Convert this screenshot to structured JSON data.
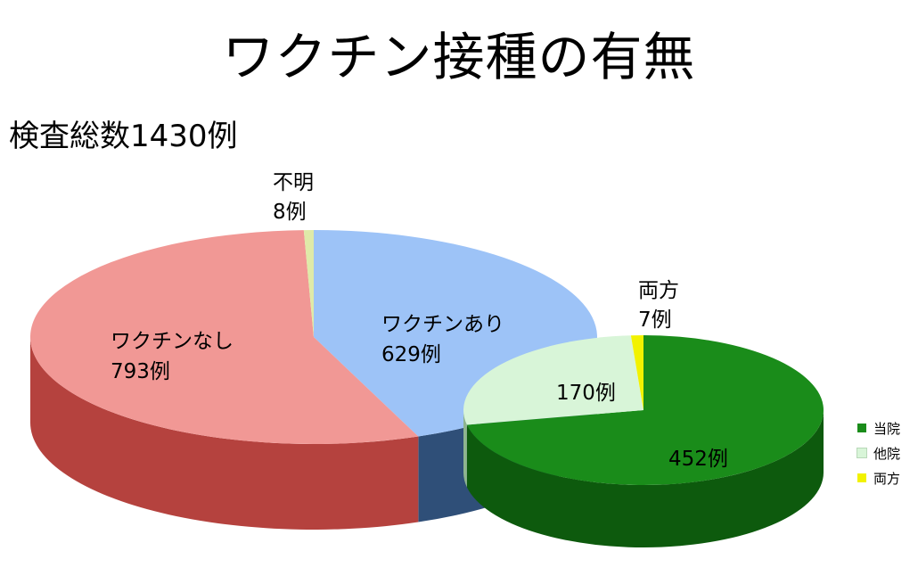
{
  "title": "ワクチン接種の有無",
  "subtitle": "検査総数1430例",
  "chart_data": [
    {
      "type": "pie",
      "slices": [
        {
          "label": "ワクチンあり",
          "value": 629,
          "value_label": "629例",
          "color": "#9dc3f7",
          "side_color": "#2f4f78"
        },
        {
          "label": "ワクチンなし",
          "value": 793,
          "value_label": "793例",
          "color": "#f19895",
          "side_color": "#b5423e"
        },
        {
          "label": "不明",
          "value": 8,
          "value_label": "8例",
          "color": "#dfeaa8",
          "side_color": "#9aa860"
        }
      ]
    },
    {
      "type": "pie",
      "slices": [
        {
          "label": "当院",
          "value": 452,
          "value_label": "452例",
          "color": "#1a8c1a",
          "side_color": "#0d5a0d"
        },
        {
          "label": "他院",
          "value": 170,
          "value_label": "170例",
          "color": "#d8f5d8",
          "side_color": "#8fb58f"
        },
        {
          "label": "両方",
          "value": 7,
          "value_label": "7例",
          "color": "#f2f200",
          "side_color": "#a0a000"
        }
      ],
      "legend": [
        "当院",
        "他院",
        "両方"
      ],
      "legend_position": "right"
    }
  ]
}
